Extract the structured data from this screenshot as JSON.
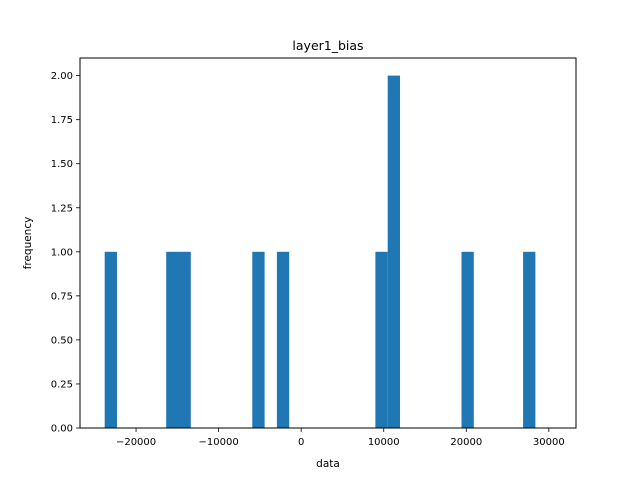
{
  "chart_data": {
    "type": "bar",
    "title": "layer1_bias",
    "xlabel": "data",
    "ylabel": "frequency",
    "xlim": [
      -26790,
      33290
    ],
    "ylim": [
      0,
      2.1
    ],
    "grid": false,
    "bar_color": "#1f77b4",
    "bin_width": 1490,
    "bins": [
      {
        "x0": -23800,
        "x1": -22310,
        "count": 1
      },
      {
        "x0": -16350,
        "x1": -14860,
        "count": 1
      },
      {
        "x0": -14860,
        "x1": -13370,
        "count": 1
      },
      {
        "x0": -5920,
        "x1": -4430,
        "count": 1
      },
      {
        "x0": -2940,
        "x1": -1450,
        "count": 1
      },
      {
        "x0": 8990,
        "x1": 10480,
        "count": 1
      },
      {
        "x0": 10480,
        "x1": 11970,
        "count": 2
      },
      {
        "x0": 19420,
        "x1": 20910,
        "count": 1
      },
      {
        "x0": 26880,
        "x1": 28370,
        "count": 1
      }
    ],
    "xticks": [
      {
        "value": -20000,
        "label": "−20000"
      },
      {
        "value": -10000,
        "label": "−10000"
      },
      {
        "value": 0,
        "label": "0"
      },
      {
        "value": 10000,
        "label": "10000"
      },
      {
        "value": 20000,
        "label": "20000"
      },
      {
        "value": 30000,
        "label": "30000"
      }
    ],
    "yticks": [
      {
        "value": 0,
        "label": "0.00"
      },
      {
        "value": 0.25,
        "label": "0.25"
      },
      {
        "value": 0.5,
        "label": "0.50"
      },
      {
        "value": 0.75,
        "label": "0.75"
      },
      {
        "value": 1.0,
        "label": "1.00"
      },
      {
        "value": 1.25,
        "label": "1.25"
      },
      {
        "value": 1.5,
        "label": "1.50"
      },
      {
        "value": 1.75,
        "label": "1.75"
      },
      {
        "value": 2.0,
        "label": "2.00"
      }
    ]
  }
}
